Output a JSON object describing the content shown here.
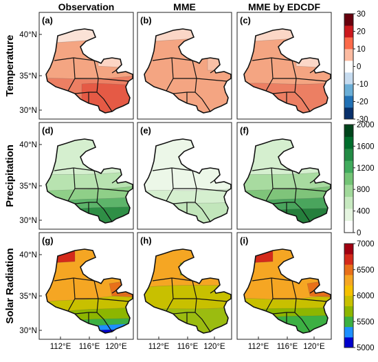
{
  "figure": {
    "column_titles": [
      "Observation",
      "MME",
      "MME by EDCDF"
    ],
    "row_titles": [
      "Temperature",
      "Precipitation",
      "Solar Radiation"
    ],
    "panel_labels": [
      [
        "(a)",
        "(b)",
        "(c)"
      ],
      [
        "(d)",
        "(e)",
        "(f)"
      ],
      [
        "(g)",
        "(h)",
        "(i)"
      ]
    ],
    "lat_ticks": [
      "40°N",
      "35°N",
      "30°N"
    ],
    "lon_ticks": [
      "112°E",
      "116°E",
      "120°E"
    ]
  },
  "colorbars": {
    "temperature": {
      "ticks": [
        "30",
        "20",
        "10",
        "0",
        "-10",
        "-20",
        "-30"
      ],
      "range": [
        -35,
        35
      ],
      "colors": [
        "#08306b",
        "#2171b5",
        "#6baed6",
        "#c6dbef",
        "#ffffff",
        "#fcbba1",
        "#fb6a4a",
        "#cb181d",
        "#67000d"
      ]
    },
    "precipitation": {
      "ticks": [
        "2000",
        "1600",
        "1200",
        "800",
        "400",
        "0"
      ],
      "range": [
        0,
        2000
      ],
      "colors": [
        "#ffffff",
        "#e5f5e0",
        "#c7e9c0",
        "#a1d99b",
        "#74c476",
        "#41ab5d",
        "#238b45",
        "#006d2c",
        "#00441b"
      ]
    },
    "solar": {
      "ticks": [
        "7000",
        "6500",
        "6000",
        "5500",
        "5000"
      ],
      "range": [
        5000,
        7000
      ],
      "colors": [
        "#0000cc",
        "#1e90ff",
        "#3cb043",
        "#8db600",
        "#c8c000",
        "#f5c000",
        "#f5a623",
        "#e8701a",
        "#d42a1a",
        "#a00010"
      ]
    }
  },
  "chart_data": {
    "type": "heatmap",
    "fields": [
      {
        "panel": "(a)",
        "variable": "Temperature",
        "source": "Observation",
        "value_range": [
          5,
          25
        ]
      },
      {
        "panel": "(b)",
        "variable": "Temperature",
        "source": "MME",
        "value_range": [
          5,
          15
        ]
      },
      {
        "panel": "(c)",
        "variable": "Temperature",
        "source": "MME by EDCDF",
        "value_range": [
          5,
          25
        ]
      },
      {
        "panel": "(d)",
        "variable": "Precipitation",
        "source": "Observation",
        "value_range": [
          400,
          1600
        ]
      },
      {
        "panel": "(e)",
        "variable": "Precipitation",
        "source": "MME",
        "value_range": [
          200,
          800
        ]
      },
      {
        "panel": "(f)",
        "variable": "Precipitation",
        "source": "MME by EDCDF",
        "value_range": [
          400,
          1600
        ]
      },
      {
        "panel": "(g)",
        "variable": "Solar Radiation",
        "source": "Observation",
        "value_range": [
          5000,
          6800
        ]
      },
      {
        "panel": "(h)",
        "variable": "Solar Radiation",
        "source": "MME",
        "value_range": [
          5600,
          6200
        ]
      },
      {
        "panel": "(i)",
        "variable": "Solar Radiation",
        "source": "MME by EDCDF",
        "value_range": [
          5500,
          6800
        ]
      }
    ]
  }
}
